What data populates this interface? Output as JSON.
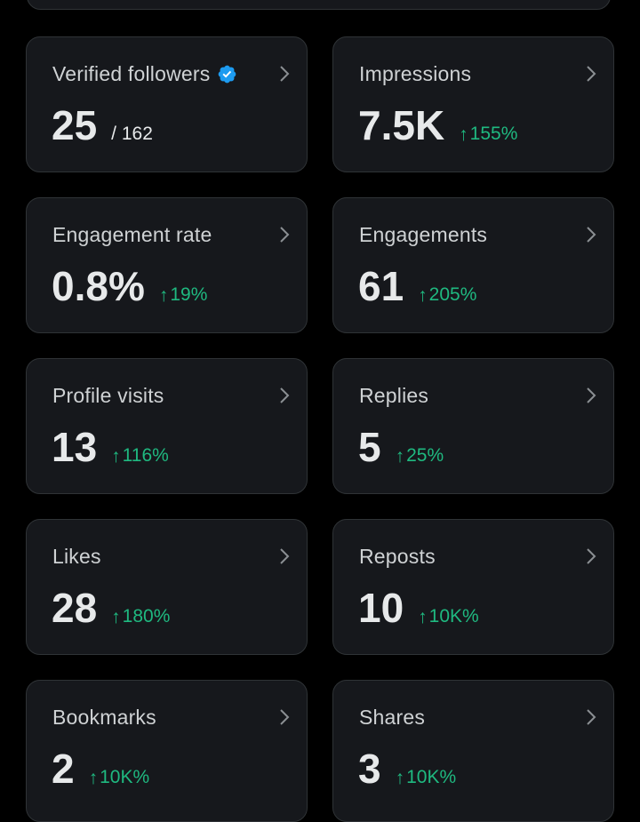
{
  "colors": {
    "background": "#000000",
    "card": "#16181c",
    "positive": "#1fb980",
    "verified": "#1d9bf0"
  },
  "cards": [
    {
      "label": "Verified followers",
      "value": "25",
      "total": "/ 162",
      "change": "",
      "verified_icon": "verified-badge-icon"
    },
    {
      "label": "Impressions",
      "value": "7.5K",
      "change": "155%"
    },
    {
      "label": "Engagement rate",
      "value": "0.8%",
      "change": "19%"
    },
    {
      "label": "Engagements",
      "value": "61",
      "change": "205%"
    },
    {
      "label": "Profile visits",
      "value": "13",
      "change": "116%"
    },
    {
      "label": "Replies",
      "value": "5",
      "change": "25%"
    },
    {
      "label": "Likes",
      "value": "28",
      "change": "180%"
    },
    {
      "label": "Reposts",
      "value": "10",
      "change": "10K%"
    },
    {
      "label": "Bookmarks",
      "value": "2",
      "change": "10K%"
    },
    {
      "label": "Shares",
      "value": "3",
      "change": "10K%"
    }
  ],
  "icons": {
    "arrow_up": "↑",
    "chevron": "chevron-right-icon"
  }
}
